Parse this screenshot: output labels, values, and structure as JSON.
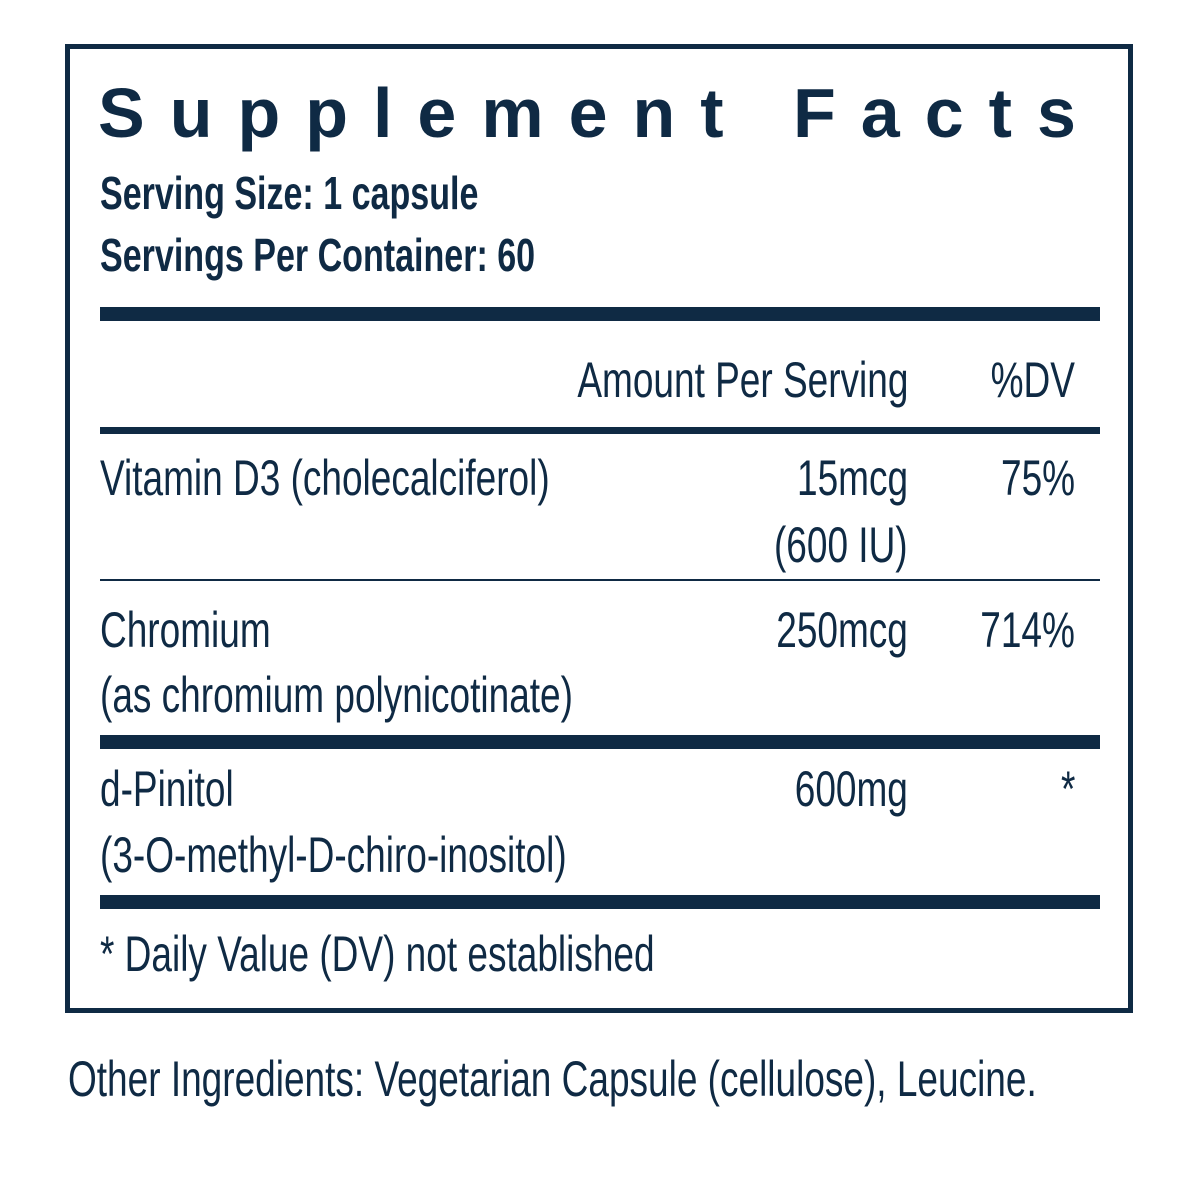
{
  "title": "Supplement Facts",
  "serving_size": "Serving Size: 1 capsule",
  "servings_per_container": "Servings Per Container: 60",
  "header": {
    "amount": "Amount Per Serving",
    "dv": "%DV"
  },
  "rows": [
    {
      "name": "Vitamin D3 (cholecalciferol)",
      "amount": "15mcg",
      "amount2": "(600 IU)",
      "dv": "75%"
    },
    {
      "name": "Chromium",
      "name2": "(as chromium polynicotinate)",
      "amount": "250mcg",
      "dv": "714%"
    },
    {
      "name": "d-Pinitol",
      "name2": "(3-O-methyl-D-chiro-inositol)",
      "amount": "600mg",
      "dv": "*"
    }
  ],
  "footnote": "* Daily Value (DV) not established",
  "other_ingredients": "Other Ingredients: Vegetarian Capsule (cellulose), Leucine."
}
